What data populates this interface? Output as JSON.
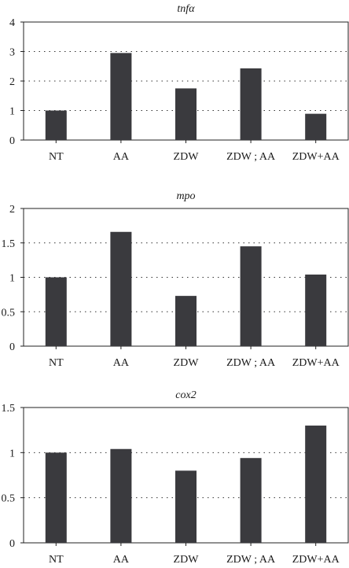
{
  "colors": {
    "bar": "#3a3a3e",
    "axis": "#222222",
    "background": "#ffffff"
  },
  "chart_data": [
    {
      "type": "bar",
      "title": "tnfα",
      "categories": [
        "NT",
        "AA",
        "ZDW",
        "ZDW ; AA",
        "ZDW+AA"
      ],
      "values": [
        1.0,
        2.95,
        1.75,
        2.43,
        0.89
      ],
      "ylim": [
        0,
        4
      ],
      "yticks": [
        0,
        1,
        2,
        3,
        4
      ],
      "ytick_labels": [
        "0",
        "1",
        "2",
        "3",
        "4"
      ],
      "gridlines": [
        1,
        2,
        3
      ],
      "grid": "horizontal dotted",
      "xlabel": "",
      "ylabel": ""
    },
    {
      "type": "bar",
      "title": "mpo",
      "categories": [
        "NT",
        "AA",
        "ZDW",
        "ZDW ; AA",
        "ZDW+AA"
      ],
      "values": [
        1.0,
        1.66,
        0.73,
        1.45,
        1.04
      ],
      "ylim": [
        0,
        2
      ],
      "yticks": [
        0,
        0.5,
        1,
        1.5,
        2
      ],
      "ytick_labels": [
        "0",
        "0.5",
        "1",
        "1.5",
        "2"
      ],
      "gridlines": [
        0.5,
        1,
        1.5
      ],
      "grid": "horizontal dotted",
      "xlabel": "",
      "ylabel": ""
    },
    {
      "type": "bar",
      "title": "cox2",
      "categories": [
        "NT",
        "AA",
        "ZDW",
        "ZDW ; AA",
        "ZDW+AA"
      ],
      "values": [
        1.0,
        1.04,
        0.8,
        0.94,
        1.3
      ],
      "ylim": [
        0,
        1.5
      ],
      "yticks": [
        0,
        0.5,
        1,
        1.5
      ],
      "ytick_labels": [
        "0",
        "0.5",
        "1",
        "1.5"
      ],
      "gridlines": [
        0.5,
        1
      ],
      "grid": "horizontal dotted",
      "xlabel": "",
      "ylabel": ""
    }
  ]
}
